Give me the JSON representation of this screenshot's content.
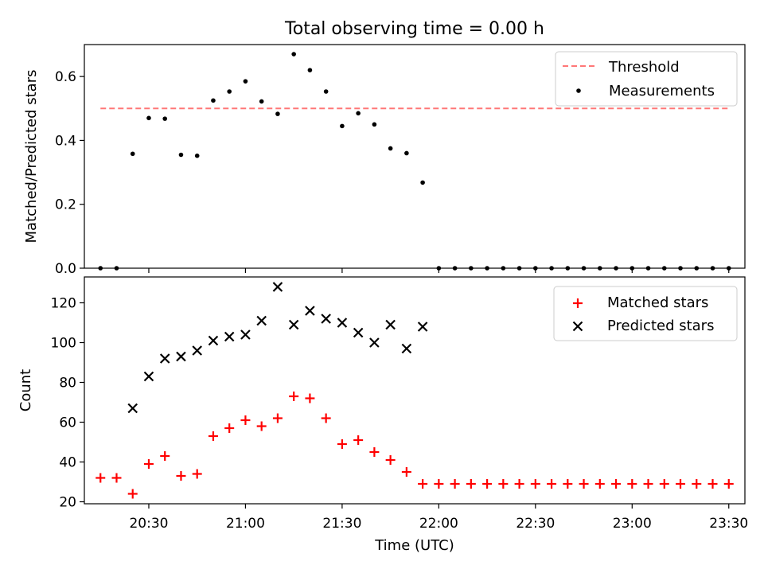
{
  "chart_data": [
    {
      "type": "scatter",
      "title": "Total observing time = 0.00 h",
      "xlabel": "",
      "ylabel": "Matched/Predicted stars",
      "ylim": [
        0,
        0.7
      ],
      "yticks": [
        0.0,
        0.2,
        0.4,
        0.6
      ],
      "ytick_labels": [
        "0.0",
        "0.2",
        "0.4",
        "0.6"
      ],
      "grid": false,
      "legend_position": "top-right",
      "legend": [
        {
          "label": "Threshold",
          "style": "dashed-line",
          "color": "#ff7777"
        },
        {
          "label": "Measurements",
          "style": "dot",
          "color": "#000000"
        }
      ],
      "threshold": {
        "name": "Threshold",
        "value": 0.5,
        "x_start": "20:15",
        "x_end": "23:30",
        "color": "#ff7777"
      },
      "series": [
        {
          "name": "Measurements",
          "color": "#000000",
          "marker": "dot",
          "x": [
            "20:15",
            "20:20",
            "20:25",
            "20:30",
            "20:35",
            "20:40",
            "20:45",
            "20:50",
            "20:55",
            "21:00",
            "21:05",
            "21:10",
            "21:15",
            "21:20",
            "21:25",
            "21:30",
            "21:35",
            "21:40",
            "21:45",
            "21:50",
            "21:55",
            "22:00",
            "22:05",
            "22:10",
            "22:15",
            "22:20",
            "22:25",
            "22:30",
            "22:35",
            "22:40",
            "22:45",
            "22:50",
            "22:55",
            "23:00",
            "23:05",
            "23:10",
            "23:15",
            "23:20",
            "23:25",
            "23:30"
          ],
          "y": [
            0.0,
            0.0,
            0.358,
            0.47,
            0.468,
            0.355,
            0.352,
            0.525,
            0.553,
            0.585,
            0.522,
            0.483,
            0.67,
            0.62,
            0.553,
            0.445,
            0.485,
            0.45,
            0.375,
            0.36,
            0.268,
            0.0,
            0.0,
            0.0,
            0.0,
            0.0,
            0.0,
            0.0,
            0.0,
            0.0,
            0.0,
            0.0,
            0.0,
            0.0,
            0.0,
            0.0,
            0.0,
            0.0,
            0.0,
            0.0
          ]
        }
      ]
    },
    {
      "type": "scatter",
      "title": "",
      "xlabel": "Time (UTC)",
      "ylabel": "Count",
      "ylim": [
        19,
        133
      ],
      "yticks": [
        20,
        40,
        60,
        80,
        100,
        120
      ],
      "ytick_labels": [
        "20",
        "40",
        "60",
        "80",
        "100",
        "120"
      ],
      "xlim": [
        "20:10",
        "23:35"
      ],
      "xticks": [
        "20:30",
        "21:00",
        "21:30",
        "22:00",
        "22:30",
        "23:00",
        "23:30"
      ],
      "xtick_labels": [
        "20:30",
        "21:00",
        "21:30",
        "22:00",
        "22:30",
        "23:00",
        "23:30"
      ],
      "grid": false,
      "legend_position": "top-right",
      "legend": [
        {
          "label": "Matched stars",
          "style": "plus",
          "color": "#ff0000"
        },
        {
          "label": "Predicted stars",
          "style": "x",
          "color": "#000000"
        }
      ],
      "series": [
        {
          "name": "Matched stars",
          "color": "#ff0000",
          "marker": "plus",
          "x": [
            "20:15",
            "20:20",
            "20:25",
            "20:30",
            "20:35",
            "20:40",
            "20:45",
            "20:50",
            "20:55",
            "21:00",
            "21:05",
            "21:10",
            "21:15",
            "21:20",
            "21:25",
            "21:30",
            "21:35",
            "21:40",
            "21:45",
            "21:50",
            "21:55",
            "22:00",
            "22:05",
            "22:10",
            "22:15",
            "22:20",
            "22:25",
            "22:30",
            "22:35",
            "22:40",
            "22:45",
            "22:50",
            "22:55",
            "23:00",
            "23:05",
            "23:10",
            "23:15",
            "23:20",
            "23:25",
            "23:30"
          ],
          "y": [
            32,
            32,
            24,
            39,
            43,
            33,
            34,
            53,
            57,
            61,
            58,
            62,
            73,
            72,
            62,
            49,
            51,
            45,
            41,
            35,
            29,
            29,
            29,
            29,
            29,
            29,
            29,
            29,
            29,
            29,
            29,
            29,
            29,
            29,
            29,
            29,
            29,
            29,
            29,
            29
          ]
        },
        {
          "name": "Predicted stars",
          "color": "#000000",
          "marker": "x",
          "x": [
            "20:25",
            "20:30",
            "20:35",
            "20:40",
            "20:45",
            "20:50",
            "20:55",
            "21:00",
            "21:05",
            "21:10",
            "21:15",
            "21:20",
            "21:25",
            "21:30",
            "21:35",
            "21:40",
            "21:45",
            "21:50",
            "21:55"
          ],
          "y": [
            67,
            83,
            92,
            93,
            96,
            101,
            103,
            104,
            111,
            128,
            109,
            116,
            112,
            110,
            105,
            100,
            109,
            97,
            108
          ]
        }
      ]
    }
  ]
}
